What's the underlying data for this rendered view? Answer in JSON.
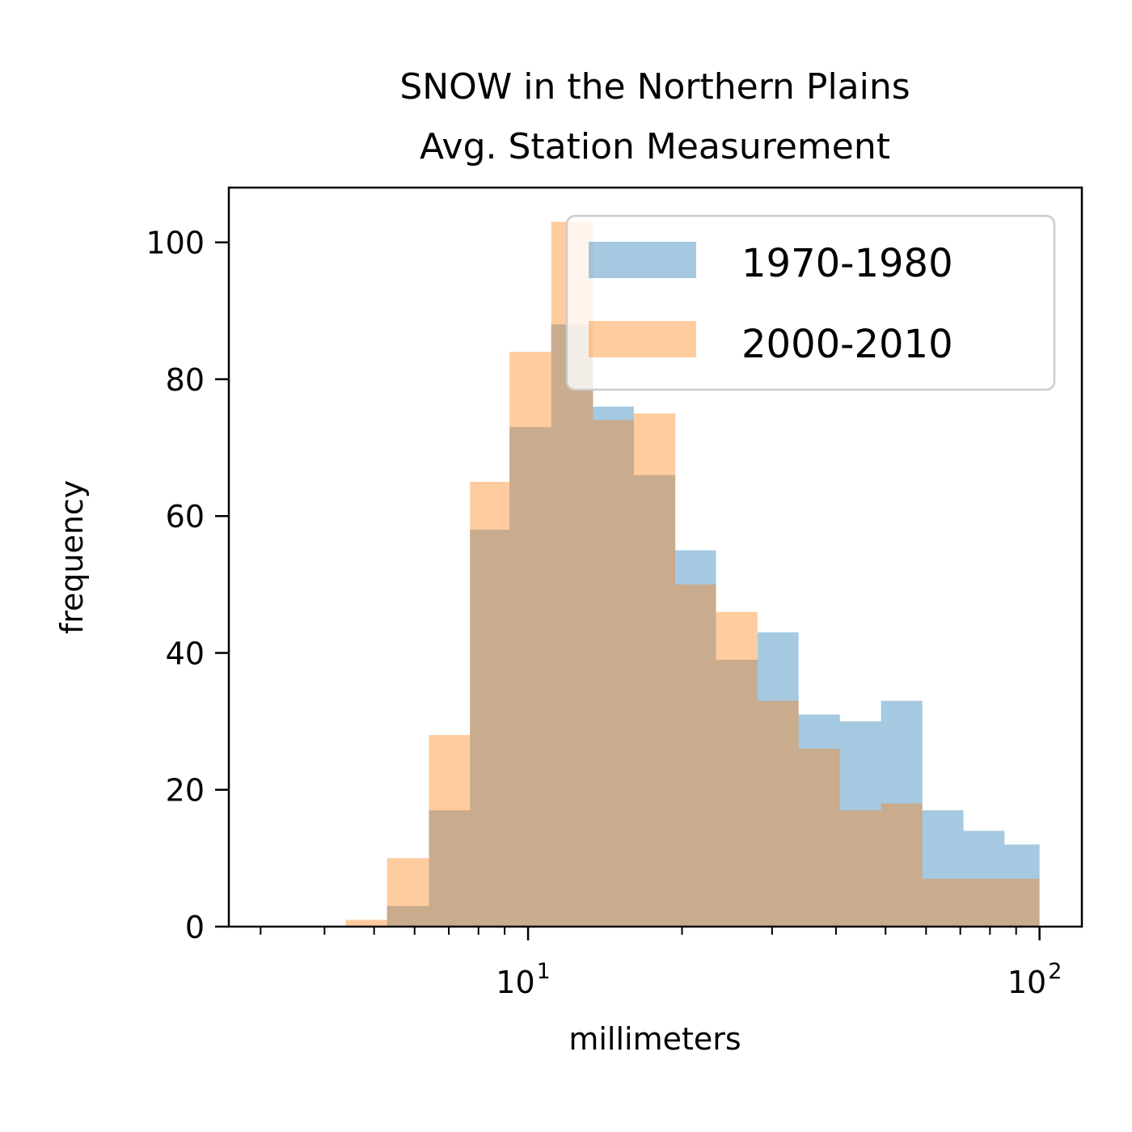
{
  "chart_data": {
    "type": "bar",
    "title": [
      "SNOW in the Northern Plains",
      "Avg. Station Measurement"
    ],
    "xlabel": "millimeters",
    "ylabel": "frequency",
    "x_scale": "log",
    "xlim": [
      2.6,
      121
    ],
    "ylim": [
      0,
      108
    ],
    "grid": false,
    "legend_position": "top-right",
    "yticks": [
      0,
      20,
      40,
      60,
      80,
      100
    ],
    "xticks": [
      {
        "value": 10,
        "base": "10",
        "exp": "1"
      },
      {
        "value": 100,
        "base": "10",
        "exp": "2"
      }
    ],
    "bin_edges": [
      3.0,
      3.6,
      4.4,
      5.3,
      6.4,
      7.7,
      9.2,
      11.1,
      13.4,
      16.1,
      19.4,
      23.3,
      28.1,
      33.8,
      40.7,
      49.0,
      59.0,
      71.0,
      85.4,
      100.0
    ],
    "series": [
      {
        "name": "1970-1980",
        "color": "#1f77b4",
        "opacity": 0.4,
        "values": [
          0,
          0,
          0,
          3,
          17,
          58,
          73,
          88,
          76,
          66,
          55,
          39,
          43,
          31,
          30,
          33,
          17,
          14,
          12
        ]
      },
      {
        "name": "2000-2010",
        "color": "#ff7f0e",
        "opacity": 0.4,
        "values": [
          0,
          0,
          1,
          10,
          28,
          65,
          84,
          103,
          74,
          75,
          50,
          46,
          33,
          26,
          17,
          18,
          7,
          7,
          7
        ]
      }
    ]
  }
}
